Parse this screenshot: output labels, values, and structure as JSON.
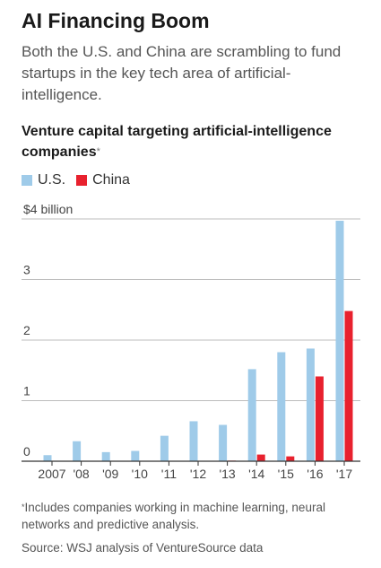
{
  "headline": "AI Financing Boom",
  "dek": "Both the U.S. and China are scrambling to fund startups in the key tech area of artificial-intelligence.",
  "footnote": "Includes companies working in machine learning, neural networks and predictive analysis.",
  "source": "Source: WSJ analysis of VentureSource data",
  "colors": {
    "us": "#9fcbe9",
    "china": "#e8212e",
    "grid": "#bdbdbd",
    "axis": "#333333"
  },
  "chart_data": {
    "type": "bar",
    "title": "Venture capital targeting artificial-intelligence companies",
    "title_mark": "*",
    "categories": [
      "2007",
      "'08",
      "'09",
      "'10",
      "'11",
      "'12",
      "'13",
      "'14",
      "'15",
      "'16",
      "'17"
    ],
    "series": [
      {
        "name": "U.S.",
        "values": [
          0.1,
          0.33,
          0.15,
          0.17,
          0.42,
          0.66,
          0.6,
          1.52,
          1.8,
          1.86,
          3.97
        ]
      },
      {
        "name": "China",
        "values": [
          0,
          0,
          0,
          0,
          0,
          0,
          0.01,
          0.11,
          0.08,
          1.4,
          2.48
        ]
      }
    ],
    "y_ticks": [
      0,
      1,
      2,
      3,
      4
    ],
    "y_tick_labels": [
      "0",
      "1",
      "2",
      "3",
      "$4 billion"
    ],
    "ylim": [
      0,
      4
    ],
    "grid": true,
    "legend": "top-left"
  }
}
